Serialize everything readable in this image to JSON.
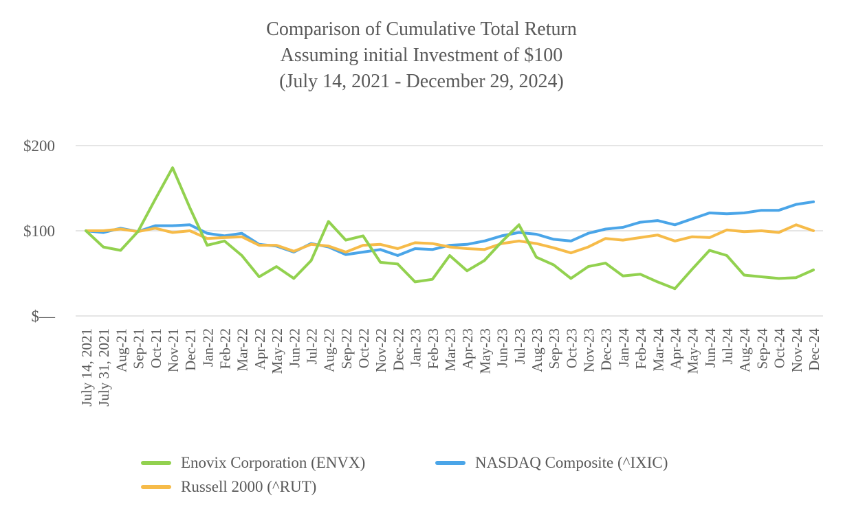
{
  "header": {
    "title_line1": "Comparison of Cumulative Total Return",
    "title_line2": "Assuming initial Investment of $100",
    "title_line3": "(July 14, 2021 - December 29, 2024)"
  },
  "chart_data": {
    "type": "line",
    "title": "Comparison of Cumulative Total Return",
    "subtitle": "Assuming initial Investment of $100",
    "period": "(July 14, 2021 - December 29, 2024)",
    "grid": true,
    "legend_position": "bottom",
    "ylim": [
      0,
      200
    ],
    "y_axis": {
      "ticks": [
        {
          "label": "$—",
          "value": 0
        },
        {
          "label": "$100",
          "value": 100
        },
        {
          "label": "$200",
          "value": 200
        }
      ]
    },
    "categories": [
      "July 14, 2021",
      "July 31, 2021",
      "Aug-21",
      "Sep-21",
      "Oct-21",
      "Nov-21",
      "Dec-21",
      "Jan-22",
      "Feb-22",
      "Mar-22",
      "Apr-22",
      "May-22",
      "Jun-22",
      "Jul-22",
      "Aug-22",
      "Sep-22",
      "Oct-22",
      "Nov-22",
      "Dec-22",
      "Jan-23",
      "Feb-23",
      "Mar-23",
      "Apr-23",
      "May-23",
      "Jun-23",
      "Jul-23",
      "Aug-23",
      "Sep-23",
      "Oct-23",
      "Nov-23",
      "Dec-23",
      "Jan-24",
      "Feb-24",
      "Mar-24",
      "Apr-24",
      "May-24",
      "Jun-24",
      "Jul-24",
      "Aug-24",
      "Sep-24",
      "Oct-24",
      "Nov-24",
      "Dec-24"
    ],
    "series": [
      {
        "name": "Enovix Corporation (ENVX)",
        "color": "#92d14f",
        "z": 3,
        "values": [
          100,
          81,
          77,
          99,
          137,
          174,
          127,
          83,
          88,
          71,
          46,
          58,
          44,
          65,
          111,
          89,
          94,
          63,
          61,
          40,
          43,
          71,
          53,
          65,
          87,
          107,
          69,
          60,
          44,
          58,
          62,
          47,
          49,
          40,
          32,
          55,
          77,
          71,
          48,
          46,
          44,
          45,
          54
        ]
      },
      {
        "name": "NASDAQ Composite (^IXIC)",
        "color": "#4aa5e8",
        "z": 1,
        "values": [
          100,
          98,
          103,
          99,
          106,
          106,
          107,
          97,
          94,
          97,
          84,
          82,
          75,
          85,
          81,
          72,
          75,
          78,
          71,
          79,
          78,
          83,
          84,
          88,
          94,
          98,
          96,
          90,
          88,
          97,
          102,
          104,
          110,
          112,
          107,
          114,
          121,
          120,
          121,
          124,
          124,
          131,
          134
        ]
      },
      {
        "name": "Russell 2000 (^RUT)",
        "color": "#f6bb49",
        "z": 2,
        "values": [
          100,
          100,
          102,
          99,
          103,
          98,
          100,
          91,
          92,
          93,
          83,
          83,
          76,
          84,
          82,
          75,
          83,
          84,
          79,
          86,
          85,
          81,
          79,
          78,
          85,
          88,
          85,
          80,
          74,
          81,
          91,
          89,
          92,
          95,
          88,
          93,
          92,
          101,
          99,
          100,
          98,
          107,
          100
        ]
      }
    ]
  },
  "colors": {
    "text": "#595959",
    "gridline": "#e5e5e5",
    "background": "#ffffff"
  }
}
